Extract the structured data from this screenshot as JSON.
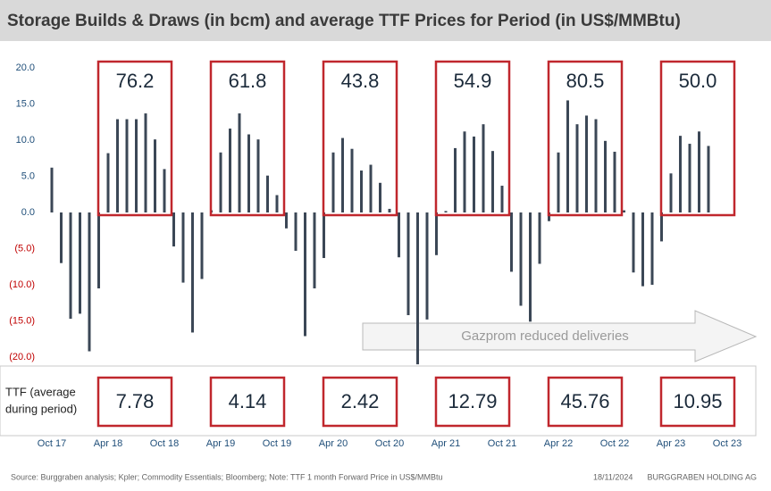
{
  "chart_data": {
    "type": "bar",
    "title": "Storage Builds & Draws (in bcm) and average TTF Prices for Period (in US$/MMBtu)",
    "categories": [
      "Oct 17",
      null,
      null,
      null,
      null,
      null,
      "Apr 18",
      null,
      null,
      null,
      null,
      null,
      "Oct 18",
      null,
      null,
      null,
      null,
      null,
      "Apr 19",
      null,
      null,
      null,
      null,
      null,
      "Oct 19",
      null,
      null,
      null,
      null,
      null,
      "Apr 20",
      null,
      null,
      null,
      null,
      null,
      "Oct 20",
      null,
      null,
      null,
      null,
      null,
      "Apr 21",
      null,
      null,
      null,
      null,
      null,
      "Oct 21",
      null,
      null,
      null,
      null,
      null,
      "Apr 22",
      null,
      null,
      null,
      null,
      null,
      "Oct 22",
      null,
      null,
      null,
      null,
      null,
      "Apr 23",
      null,
      null,
      null,
      null,
      null,
      "Oct 23"
    ],
    "values": [
      6.2,
      -7.0,
      -14.7,
      -14.0,
      -19.2,
      -10.5,
      8.2,
      12.9,
      12.9,
      12.9,
      13.7,
      10.1,
      6.0,
      -4.7,
      -9.7,
      -16.6,
      -9.2,
      0.3,
      8.3,
      11.6,
      13.7,
      10.8,
      10.1,
      5.1,
      2.4,
      -2.2,
      -5.3,
      -17.1,
      -10.5,
      -6.3,
      8.3,
      10.3,
      8.8,
      5.8,
      6.6,
      4.1,
      0.5,
      -6.2,
      -14.2,
      -21.0,
      -14.8,
      -5.9,
      0.2,
      8.9,
      11.2,
      10.5,
      12.2,
      8.5,
      3.7,
      -8.2,
      -12.9,
      -15.1,
      -7.1,
      -1.2,
      8.3,
      15.5,
      12.2,
      13.4,
      12.9,
      9.9,
      8.4,
      0.3,
      -8.3,
      -10.2,
      -10.0,
      -4.0,
      5.4,
      10.6,
      9.5,
      11.2,
      9.2,
      null,
      null
    ],
    "color": "#3b4756",
    "ylim": [
      -20,
      20
    ],
    "yticks": [
      {
        "value": 20,
        "label": "20.0"
      },
      {
        "value": 15,
        "label": "15.0"
      },
      {
        "value": 10,
        "label": "10.0"
      },
      {
        "value": 5,
        "label": "5.0"
      },
      {
        "value": 0,
        "label": "0.0"
      },
      {
        "value": -5,
        "label": "(5.0)"
      },
      {
        "value": -10,
        "label": "(10.0)"
      },
      {
        "value": -15,
        "label": "(15.0)"
      },
      {
        "value": -20,
        "label": "(20.0)"
      }
    ],
    "storage_period_labels": [
      "76.2",
      "61.8",
      "43.8",
      "54.9",
      "80.5",
      "50.0"
    ],
    "ttf_label": [
      "TTF (average",
      "during period)"
    ],
    "ttf_period_labels": [
      "7.78",
      "4.14",
      "2.42",
      "12.79",
      "45.76",
      "10.95"
    ],
    "arrow_annotation": "Gazprom reduced deliveries",
    "source": "Source: Burggraben analysis; Kpler; Commodity Essentials; Bloomberg; Note: TTF 1 month Forward Price in US$/MMBtu",
    "date": "18/11/2024",
    "company": "BURGGRABEN HOLDING AG"
  }
}
